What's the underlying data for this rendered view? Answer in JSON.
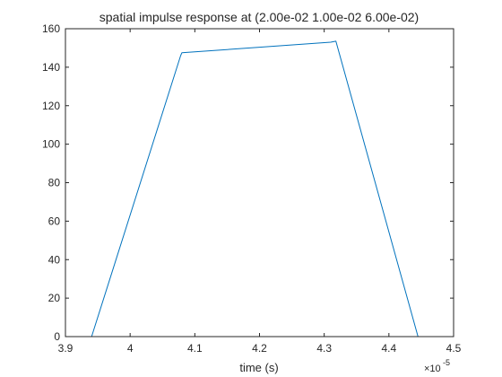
{
  "chart_data": {
    "type": "line",
    "title": "spatial impulse response at (2.00e-02 1.00e-02 6.00e-02)",
    "xlabel": "time (s)",
    "ylabel": "",
    "x_exponent_label": "×10",
    "x_exponent_power": "-5",
    "xlim": [
      3.9,
      4.5
    ],
    "ylim": [
      0,
      160
    ],
    "xticks": [
      3.9,
      4.0,
      4.1,
      4.2,
      4.3,
      4.4,
      4.5
    ],
    "xtick_labels": [
      "3.9",
      "4",
      "4.1",
      "4.2",
      "4.3",
      "4.4",
      "4.5"
    ],
    "yticks": [
      0,
      20,
      40,
      60,
      80,
      100,
      120,
      140,
      160
    ],
    "ytick_labels": [
      "0",
      "20",
      "40",
      "60",
      "80",
      "100",
      "120",
      "140",
      "160"
    ],
    "grid": false,
    "series": [
      {
        "color": "#0072BD",
        "x": [
          3.9405,
          4.078,
          4.08,
          4.31,
          4.318,
          4.445
        ],
        "y": [
          0,
          146,
          147.5,
          153,
          153.5,
          0
        ]
      }
    ]
  }
}
